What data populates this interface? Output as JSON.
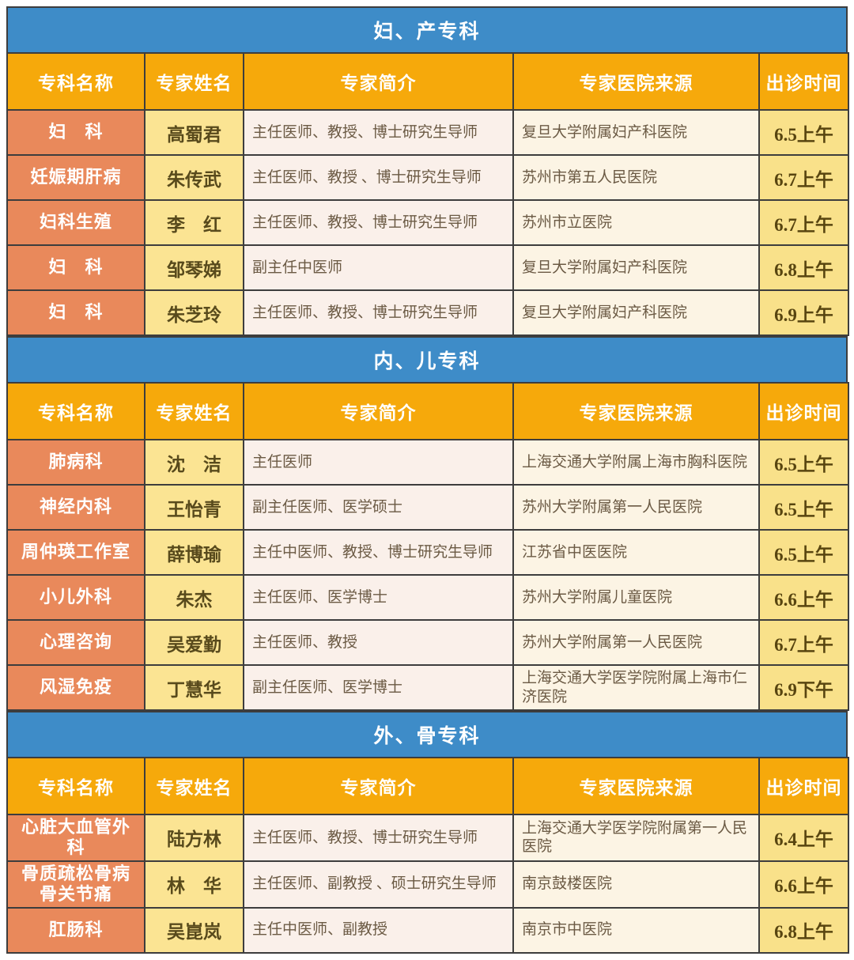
{
  "columns": [
    "专科名称",
    "专家姓名",
    "专家简介",
    "专家医院来源",
    "出诊时间"
  ],
  "colors": {
    "section_band_bg": "#3E8CC8",
    "header_bg": "#F6A90B",
    "specialty_col_bg": "#E9895B",
    "name_col_bg": "#FBE493",
    "intro_col_bg": "#FAF0EA",
    "hospital_col_bg": "#FCF4E4",
    "time_col_bg": "#F9E18A",
    "border": "#3d3d3d",
    "band_text": "#ffffff",
    "header_text": "#ffffff"
  },
  "sections": [
    {
      "title": "妇、产专科",
      "rows": [
        [
          "妇　科",
          "高蜀君",
          "主任医师、教授、博士研究生导师",
          "复旦大学附属妇产科医院",
          "6.5上午"
        ],
        [
          "妊娠期肝病",
          "朱传武",
          "主任医师、教授 、博士研究生导师",
          "苏州市第五人民医院",
          "6.7上午"
        ],
        [
          "妇科生殖",
          "李　红",
          "主任医师、教授、博士研究生导师",
          "苏州市立医院",
          "6.7上午"
        ],
        [
          "妇　科",
          "邹琴娣",
          "副主任中医师",
          "复旦大学附属妇产科医院",
          "6.8上午"
        ],
        [
          "妇　科",
          "朱芝玲",
          "主任医师、教授、博士研究生导师",
          "复旦大学附属妇产科医院",
          "6.9上午"
        ]
      ]
    },
    {
      "title": "内、儿专科",
      "rows": [
        [
          "肺病科",
          "沈　洁",
          "主任医师",
          "上海交通大学附属上海市胸科医院",
          "6.5上午"
        ],
        [
          "神经内科",
          "王怡青",
          "副主任医师、医学硕士",
          "苏州大学附属第一人民医院",
          "6.5上午"
        ],
        [
          "周仲瑛工作室",
          "薛博瑜",
          "主任中医师、教授、博士研究生导师",
          "江苏省中医医院",
          "6.5上午"
        ],
        [
          "小儿外科",
          "朱杰",
          "主任医师、医学博士",
          "苏州大学附属儿童医院",
          "6.6上午"
        ],
        [
          "心理咨询",
          "吴爱勤",
          "主任医师、教授",
          "苏州大学附属第一人民医院",
          "6.7上午"
        ],
        [
          "风湿免疫",
          "丁慧华",
          "副主任医师、医学博士",
          "上海交通大学医学院附属上海市仁济医院",
          "6.9下午"
        ]
      ]
    },
    {
      "title": "外、骨专科",
      "rows": [
        [
          "心脏大血管外科",
          "陆方林",
          "主任医师、教授、博士研究生导师",
          "上海交通大学医学院附属第一人民医院",
          "6.4上午"
        ],
        [
          "骨质疏松骨病\n骨关节痛",
          "林　华",
          "主任医师、副教授 、硕士研究生导师",
          "南京鼓楼医院",
          "6.6上午"
        ],
        [
          "肛肠科",
          "吴崑岚",
          "主任中医师、副教授",
          "南京市中医院",
          "6.8上午"
        ]
      ]
    }
  ]
}
